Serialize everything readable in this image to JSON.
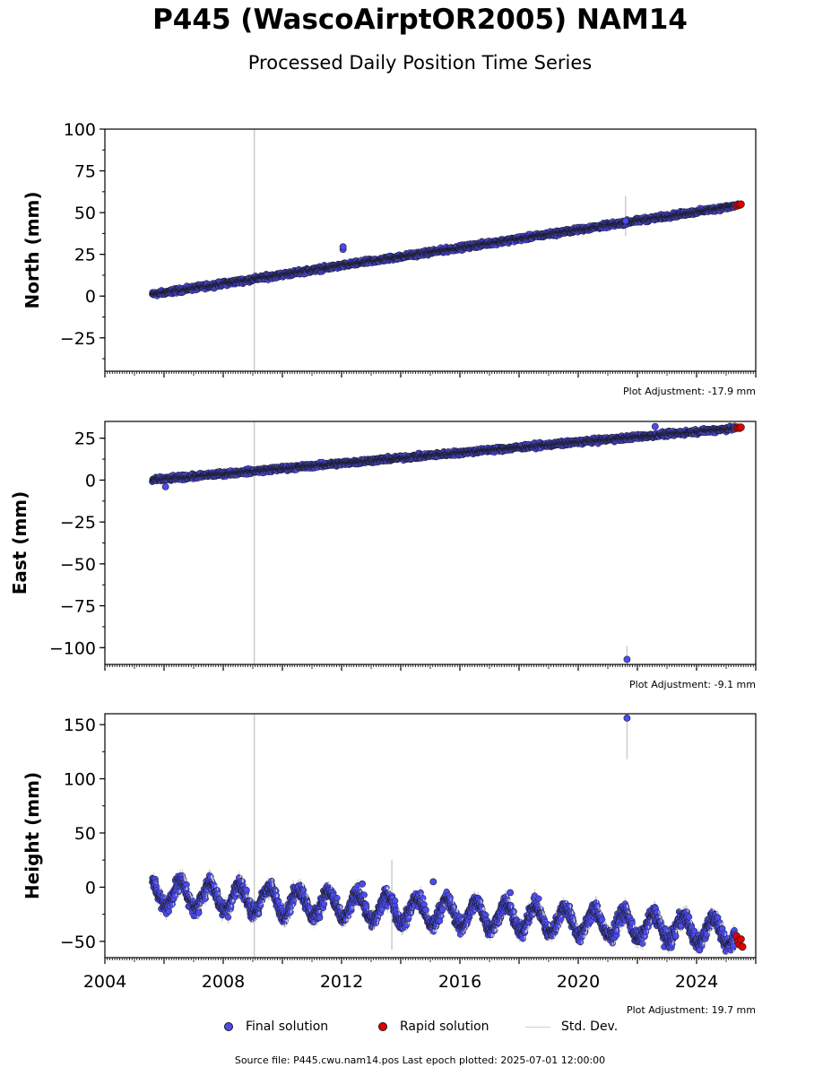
{
  "title": "P445 (WascoAirptOR2005) NAM14",
  "subtitle": "Processed Daily Position Time Series",
  "colors": {
    "final": "#4b4bf0",
    "rapid": "#e00000",
    "stddev": "#cccccc",
    "edge": "#1a1a1a"
  },
  "legend": {
    "final": "Final solution",
    "rapid": "Rapid solution",
    "stddev": "Std. Dev."
  },
  "source_text": "Source file: P445.cwu.nam14.pos  Last epoch plotted: 2025-07-01 12:00:00",
  "chart_data": [
    {
      "type": "scatter",
      "ylabel": "North (mm)",
      "adjustment_label": "Plot Adjustment: -17.9 mm",
      "xlim": [
        2004,
        2026
      ],
      "ylim": [
        -45,
        100
      ],
      "yticks": [
        -25,
        0,
        25,
        50,
        75,
        100
      ],
      "ytick_labels": [
        "−25",
        "0",
        "25",
        "50",
        "75",
        "100"
      ],
      "final_trend": {
        "x": [
          2005.6,
          2025.3
        ],
        "y": [
          1,
          54
        ]
      },
      "rapid_points": {
        "x": [
          2025.35,
          2025.4,
          2025.45,
          2025.5
        ],
        "y": [
          54,
          55,
          54.5,
          55
        ]
      },
      "outliers": {
        "x": [
          2012.05,
          2012.05,
          2021.6
        ],
        "y": [
          28,
          29.5,
          45
        ]
      },
      "stddev_bars": [
        {
          "x": 2009.05,
          "y0": -45,
          "y1": 100
        },
        {
          "x": 2021.6,
          "y0": 36,
          "y1": 60
        }
      ]
    },
    {
      "type": "scatter",
      "ylabel": "East (mm)",
      "adjustment_label": "Plot Adjustment: -9.1 mm",
      "xlim": [
        2004,
        2026
      ],
      "ylim": [
        -110,
        35
      ],
      "yticks": [
        -100,
        -75,
        -50,
        -25,
        0,
        25
      ],
      "ytick_labels": [
        "−100",
        "−75",
        "−50",
        "−25",
        "0",
        "25"
      ],
      "final_trend": {
        "x": [
          2005.6,
          2025.3
        ],
        "y": [
          0,
          31
        ]
      },
      "rapid_points": {
        "x": [
          2025.35,
          2025.4,
          2025.45,
          2025.5
        ],
        "y": [
          31,
          31.5,
          31,
          31.5
        ]
      },
      "outliers": {
        "x": [
          2021.65,
          2022.6,
          2006.05
        ],
        "y": [
          -107,
          32,
          -4
        ]
      },
      "stddev_bars": [
        {
          "x": 2009.05,
          "y0": -110,
          "y1": 35
        },
        {
          "x": 2021.65,
          "y0": -112,
          "y1": -99
        }
      ]
    },
    {
      "type": "scatter",
      "ylabel": "Height (mm)",
      "adjustment_label": "Plot Adjustment: 19.7 mm",
      "xlim": [
        2004,
        2026
      ],
      "ylim": [
        -65,
        160
      ],
      "yticks": [
        -50,
        0,
        50,
        100,
        150
      ],
      "ytick_labels": [
        "−50",
        "0",
        "50",
        "100",
        "150"
      ],
      "xticks": [
        2004,
        2008,
        2012,
        2016,
        2020,
        2024
      ],
      "final_trend": {
        "x": [
          2005.6,
          2025.3
        ],
        "y": [
          -5,
          -42
        ]
      },
      "seasonal_amplitude_mm": 12,
      "rapid_points": {
        "x": [
          2025.35,
          2025.4,
          2025.45,
          2025.5,
          2025.55
        ],
        "y": [
          -45,
          -50,
          -53,
          -48,
          -55
        ]
      },
      "outliers": {
        "x": [
          2021.65,
          2015.1,
          2017.7,
          2012.7,
          2024.1
        ],
        "y": [
          156,
          5,
          -5,
          3,
          -58
        ]
      },
      "stddev_bars": [
        {
          "x": 2009.05,
          "y0": -65,
          "y1": 160
        },
        {
          "x": 2021.65,
          "y0": 118,
          "y1": 158
        },
        {
          "x": 2013.7,
          "y0": -58,
          "y1": 25
        }
      ]
    }
  ]
}
